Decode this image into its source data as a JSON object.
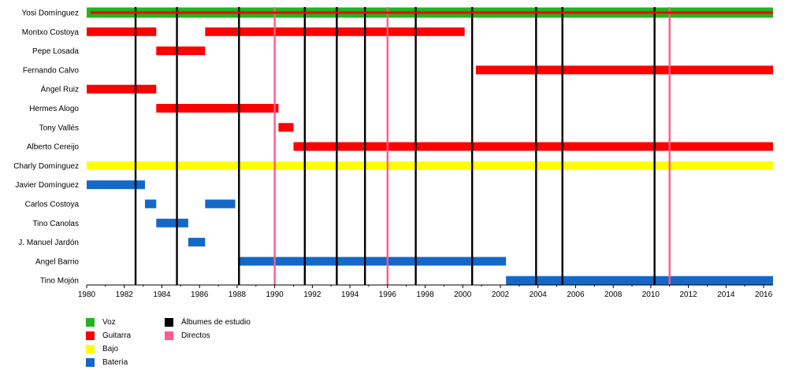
{
  "chart_data": {
    "type": "timeline",
    "xlim": [
      1980,
      2016.5
    ],
    "x_ticks": [
      1980,
      1982,
      1984,
      1986,
      1988,
      1990,
      1992,
      1994,
      1996,
      1998,
      2000,
      2002,
      2004,
      2006,
      2008,
      2010,
      2012,
      2014,
      2016
    ],
    "members": [
      "Yosi Domínguez",
      "Montxo Costoya",
      "Pepe Losada",
      "Fernando Calvo",
      "Ángel Ruiz",
      "Hermes Alogo",
      "Tony Vallés",
      "Alberto Cereijo",
      "Charly Domínguez",
      "Javier Domínguez",
      "Carlos Costoya",
      "Tino Canolas",
      "J. Manuel Jardón",
      "Angel Barrio",
      "Tino Mojón"
    ],
    "roles": [
      {
        "key": "voz",
        "label": "Voz",
        "color": "#22b422"
      },
      {
        "key": "guitarra",
        "label": "Guitarra",
        "color": "#ff0000"
      },
      {
        "key": "bajo",
        "label": "Bajo",
        "color": "#ffff00"
      },
      {
        "key": "bateria",
        "label": "Batería",
        "color": "#1468c8"
      }
    ],
    "events": [
      {
        "key": "estudio",
        "label": "Álbumes de estudio",
        "color": "#000000"
      },
      {
        "key": "directos",
        "label": "Directos",
        "color": "#ff5a8c"
      }
    ],
    "bars": [
      {
        "member": 0,
        "role": "voz",
        "start": 1980,
        "end": 2016.5
      },
      {
        "member": 0,
        "role": "guitarra",
        "start": 1980.2,
        "end": 2016.5,
        "inner": true
      },
      {
        "member": 1,
        "role": "guitarra",
        "start": 1980,
        "end": 1983.7
      },
      {
        "member": 1,
        "role": "guitarra",
        "start": 1986.3,
        "end": 2000.1
      },
      {
        "member": 2,
        "role": "guitarra",
        "start": 1983.7,
        "end": 1986.3
      },
      {
        "member": 3,
        "role": "guitarra",
        "start": 2000.7,
        "end": 2016.5
      },
      {
        "member": 4,
        "role": "guitarra",
        "start": 1980,
        "end": 1983.7
      },
      {
        "member": 5,
        "role": "guitarra",
        "start": 1983.7,
        "end": 1990.2
      },
      {
        "member": 6,
        "role": "guitarra",
        "start": 1990.2,
        "end": 1991.0
      },
      {
        "member": 7,
        "role": "guitarra",
        "start": 1991.0,
        "end": 2016.5
      },
      {
        "member": 8,
        "role": "bajo",
        "start": 1980,
        "end": 2016.5
      },
      {
        "member": 9,
        "role": "bateria",
        "start": 1980,
        "end": 1983.1
      },
      {
        "member": 10,
        "role": "bateria",
        "start": 1983.1,
        "end": 1983.7
      },
      {
        "member": 10,
        "role": "bateria",
        "start": 1986.3,
        "end": 1987.9
      },
      {
        "member": 11,
        "role": "bateria",
        "start": 1983.7,
        "end": 1985.4
      },
      {
        "member": 12,
        "role": "bateria",
        "start": 1985.4,
        "end": 1986.3
      },
      {
        "member": 13,
        "role": "bateria",
        "start": 1988.1,
        "end": 2002.3
      },
      {
        "member": 14,
        "role": "bateria",
        "start": 2002.3,
        "end": 2016.5
      }
    ],
    "studio_albums": [
      1982.6,
      1984.8,
      1988.1,
      1991.6,
      1993.3,
      1994.8,
      1997.5,
      2000.5,
      2003.9,
      2005.3,
      2010.2
    ],
    "live_albums": [
      1990.0,
      1996.0,
      2011.0
    ]
  }
}
